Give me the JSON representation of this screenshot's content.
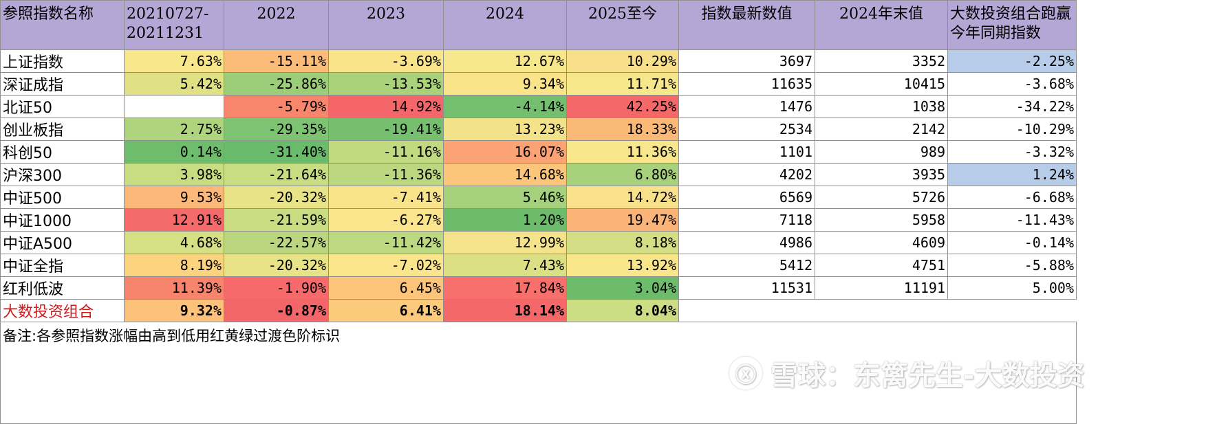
{
  "table": {
    "columns": [
      "参照指数名称",
      "20210727-20211231",
      "2022",
      "2023",
      "2024",
      "2025至今",
      "指数最新数值",
      "2024年末值",
      "大数投资组合跑赢今年同期指数"
    ],
    "rows": [
      {
        "name": "上证指数",
        "cells": [
          "7.63%",
          "-15.11%",
          "-3.69%",
          "12.67%",
          "10.29%",
          "3697",
          "3352",
          "-2.25%"
        ],
        "colors": [
          "#f8e68b",
          "#fbbc79",
          "#f9e48a",
          "#f6e78c",
          "#f8e08a",
          "",
          "",
          "#b7cce8"
        ]
      },
      {
        "name": "深证成指",
        "cells": [
          "5.42%",
          "-25.86%",
          "-13.53%",
          "9.34%",
          "11.71%",
          "11635",
          "10415",
          "-3.68%"
        ],
        "colors": [
          "#dfe184",
          "#9ccd78",
          "#a9d27b",
          "#f9e48a",
          "#f7e78b",
          "",
          "",
          ""
        ]
      },
      {
        "name": "北证50",
        "cells": [
          "",
          "-5.79%",
          "14.92%",
          "-4.14%",
          "42.25%",
          "1476",
          "1038",
          "-34.22%"
        ],
        "colors": [
          "",
          "#f7866d",
          "#f46669",
          "#74be6f",
          "#f5686a",
          "",
          "",
          ""
        ]
      },
      {
        "name": "创业板指",
        "cells": [
          "2.75%",
          "-29.35%",
          "-19.41%",
          "13.23%",
          "18.33%",
          "2534",
          "2142",
          "-10.29%"
        ],
        "colors": [
          "#aed57e",
          "#7ec372",
          "#75bf6f",
          "#f2e38a",
          "#fbb978",
          "",
          "",
          ""
        ]
      },
      {
        "name": "科创50",
        "cells": [
          "0.14%",
          "-31.40%",
          "-11.16%",
          "16.07%",
          "11.36%",
          "1101",
          "989",
          "-3.32%"
        ],
        "colors": [
          "#6ebd6c",
          "#6abb6c",
          "#c1da81",
          "#fba374",
          "#f7e68c",
          "",
          "",
          ""
        ]
      },
      {
        "name": "沪深300",
        "cells": [
          "3.98%",
          "-21.64%",
          "-11.36%",
          "14.68%",
          "6.80%",
          "4202",
          "3935",
          "1.24%"
        ],
        "colors": [
          "#c8dc81",
          "#c8dc82",
          "#bbd780",
          "#fcc67a",
          "#a7d17b",
          "",
          "",
          "#b7cce8"
        ]
      },
      {
        "name": "中证500",
        "cells": [
          "9.53%",
          "-20.32%",
          "-7.41%",
          "5.46%",
          "14.72%",
          "6569",
          "5726",
          "-6.68%"
        ],
        "colors": [
          "#fbb878",
          "#e8e386",
          "#fae48b",
          "#a5d07c",
          "#f8e18a",
          "",
          "",
          ""
        ]
      },
      {
        "name": "中证1000",
        "cells": [
          "12.91%",
          "-21.59%",
          "-6.27%",
          "1.20%",
          "19.47%",
          "7118",
          "5958",
          "-11.43%"
        ],
        "colors": [
          "#f56a6b",
          "#c9dc82",
          "#fbe58c",
          "#6cbc6c",
          "#fbb477",
          "",
          "",
          ""
        ]
      },
      {
        "name": "中证A500",
        "cells": [
          "4.68%",
          "-22.57%",
          "-11.42%",
          "12.99%",
          "8.18%",
          "4986",
          "4609",
          "-0.14%"
        ],
        "colors": [
          "#d5df84",
          "#bad780",
          "#bcd880",
          "#f4e38b",
          "#d4de84",
          "",
          "",
          ""
        ]
      },
      {
        "name": "中证全指",
        "cells": [
          "8.19%",
          "-20.32%",
          "-7.02%",
          "7.43%",
          "13.92%",
          "5412",
          "4751",
          "-5.88%"
        ],
        "colors": [
          "#fbd27e",
          "#e8e386",
          "#fae58c",
          "#dbe085",
          "#f9e58a",
          "",
          "",
          ""
        ]
      },
      {
        "name": "红利低波",
        "cells": [
          "11.39%",
          "-1.90%",
          "6.45%",
          "17.84%",
          "3.04%",
          "11531",
          "11191",
          "5.00%"
        ],
        "colors": [
          "#f7856e",
          "#f66a6b",
          "#fcc57a",
          "#f8706b",
          "#6cbc6c",
          "",
          "",
          ""
        ]
      },
      {
        "name": "大数投资组合",
        "cells": [
          "9.32%",
          "-0.87%",
          "6.41%",
          "18.14%",
          "8.04%",
          "",
          "",
          ""
        ],
        "colors": [
          "#fcc17a",
          "#f2666a",
          "#fcca7b",
          "#f5686a",
          "#ccdd83",
          "",
          "",
          ""
        ],
        "portfolio": true
      }
    ],
    "note": "备注:各参照指数涨幅由高到低用红黄绿过渡色阶标识"
  },
  "watermark": {
    "logo_glyph": "ⓧ",
    "text": "雪球：东篱先生-大数投资"
  }
}
